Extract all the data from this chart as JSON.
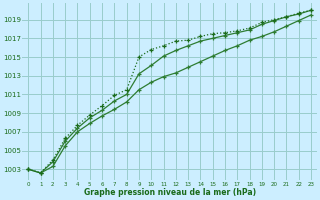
{
  "x": [
    0,
    1,
    2,
    3,
    4,
    5,
    6,
    7,
    8,
    9,
    10,
    11,
    12,
    13,
    14,
    15,
    16,
    17,
    18,
    19,
    20,
    21,
    22,
    23
  ],
  "series1": [
    1003.0,
    1002.6,
    1004.0,
    1006.3,
    1007.7,
    1008.8,
    1009.8,
    1010.9,
    1011.5,
    1015.0,
    1015.8,
    1016.2,
    1016.7,
    1016.8,
    1017.2,
    1017.5,
    1017.6,
    1017.8,
    1018.1,
    1018.7,
    1019.0,
    1019.3,
    1019.7,
    1020.0
  ],
  "series2": [
    1003.0,
    1002.6,
    1003.8,
    1006.0,
    1007.4,
    1008.5,
    1009.3,
    1010.3,
    1011.0,
    1013.2,
    1014.1,
    1015.1,
    1015.7,
    1016.2,
    1016.7,
    1017.0,
    1017.3,
    1017.6,
    1017.9,
    1018.5,
    1018.9,
    1019.3,
    1019.6,
    1020.0
  ],
  "series3": [
    1003.0,
    1002.6,
    1003.3,
    1005.5,
    1007.0,
    1007.9,
    1008.7,
    1009.4,
    1010.2,
    1011.5,
    1012.3,
    1012.9,
    1013.3,
    1013.9,
    1014.5,
    1015.1,
    1015.7,
    1016.2,
    1016.8,
    1017.2,
    1017.7,
    1018.3,
    1018.9,
    1019.5
  ],
  "line_color1": "#1a6b1a",
  "line_color2": "#2e7d32",
  "line_color3": "#2e7d32",
  "bg_color": "#cceeff",
  "grid_color": "#99cccc",
  "text_color": "#1a6b1a",
  "xlabel": "Graphe pression niveau de la mer (hPa)",
  "yticks": [
    1003,
    1005,
    1007,
    1009,
    1011,
    1013,
    1015,
    1017,
    1019
  ],
  "ylim": [
    1001.8,
    1020.8
  ],
  "xlim": [
    -0.5,
    23.5
  ]
}
